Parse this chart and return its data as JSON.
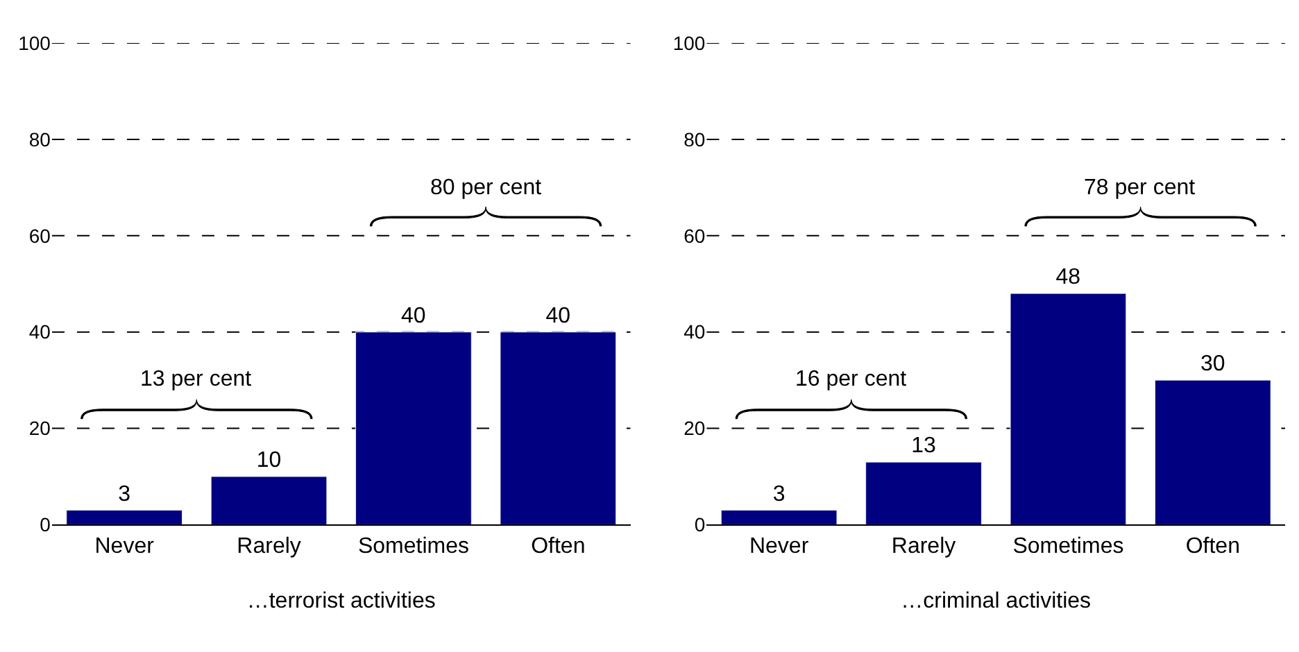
{
  "chart_data": [
    {
      "type": "bar",
      "categories": [
        "Never",
        "Rarely",
        "Sometimes",
        "Often"
      ],
      "values": [
        3,
        10,
        40,
        40
      ],
      "color": "#000080",
      "ylim": [
        0,
        100
      ],
      "yticks": [
        0,
        20,
        40,
        60,
        80,
        100
      ],
      "grid": "y",
      "data_labels": true,
      "xlabel": "…terrorist activities",
      "annotations": [
        "13 per cent",
        "80 per cent"
      ]
    },
    {
      "type": "bar",
      "categories": [
        "Never",
        "Rarely",
        "Sometimes",
        "Often"
      ],
      "values": [
        3,
        13,
        48,
        30
      ],
      "color": "#000080",
      "ylim": [
        0,
        100
      ],
      "yticks": [
        0,
        20,
        40,
        60,
        80,
        100
      ],
      "grid": "y",
      "data_labels": true,
      "xlabel": "…criminal activities",
      "annotations": [
        "16 per cent",
        "78 per cent"
      ]
    }
  ]
}
